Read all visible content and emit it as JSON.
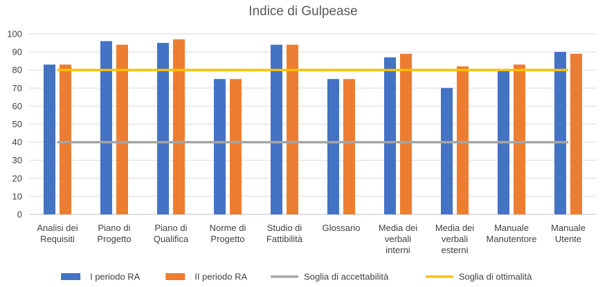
{
  "chart_data": {
    "type": "bar",
    "title": "Indice di Gulpease",
    "categories": [
      [
        "Analisi dei",
        "Requisiti"
      ],
      [
        "Piano di",
        "Progetto"
      ],
      [
        "Piano di",
        "Qualifica"
      ],
      [
        "Norme di",
        "Progetto"
      ],
      [
        "Studio di",
        "Fattibilità"
      ],
      [
        "Glossario"
      ],
      [
        "Media dei",
        "verbali",
        "interni"
      ],
      [
        "Media dei",
        "verbali",
        "esterni"
      ],
      [
        "Manuale",
        "Manutentore"
      ],
      [
        "Manuale",
        "Utente"
      ]
    ],
    "series": [
      {
        "name": "I periodo RA",
        "type": "bar",
        "color": "#4472C4",
        "values": [
          83,
          96,
          95,
          75,
          94,
          75,
          87,
          70,
          80,
          90
        ]
      },
      {
        "name": "II periodo RA",
        "type": "bar",
        "color": "#ED7D31",
        "values": [
          83,
          94,
          97,
          75,
          94,
          75,
          89,
          82,
          83,
          89
        ]
      },
      {
        "name": "Soglia di accettabilità",
        "type": "line",
        "color": "#A5A5A5",
        "values": [
          40,
          40,
          40,
          40,
          40,
          40,
          40,
          40,
          40,
          40
        ]
      },
      {
        "name": "Soglia di ottimalità",
        "type": "line",
        "color": "#FFC000",
        "values": [
          80,
          80,
          80,
          80,
          80,
          80,
          80,
          80,
          80,
          80
        ]
      }
    ],
    "ylim": [
      0,
      100
    ],
    "yticks": [
      0,
      10,
      20,
      30,
      40,
      50,
      60,
      70,
      80,
      90,
      100
    ],
    "grid": true,
    "legend": "bottom"
  }
}
